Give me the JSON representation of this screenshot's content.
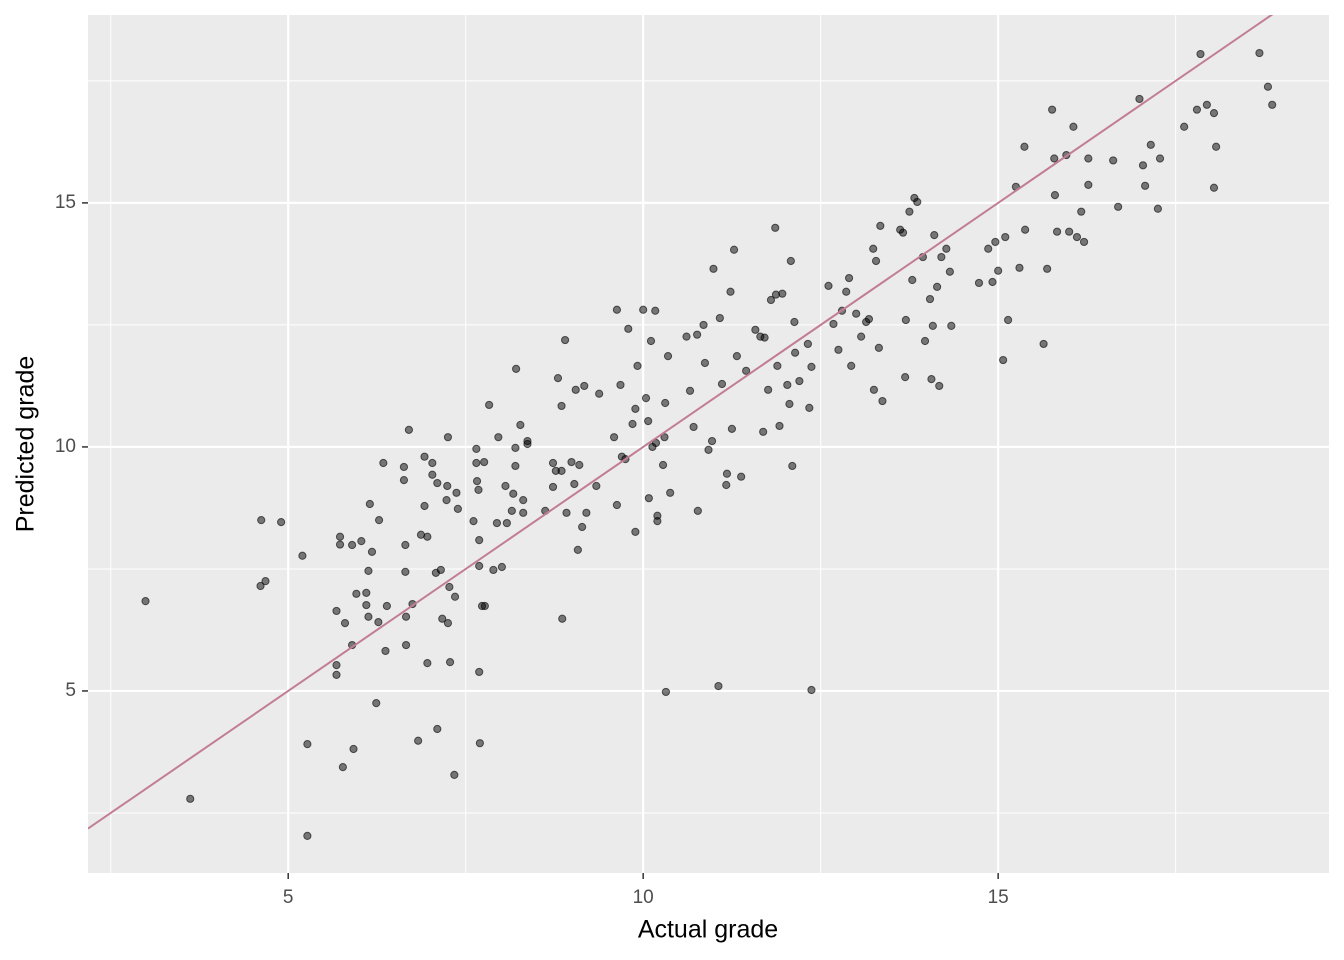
{
  "chart_data": {
    "type": "scatter",
    "x_label": "Actual grade",
    "y_label": "Predicted grade",
    "xlim": [
      2.18,
      19.66
    ],
    "ylim": [
      1.27,
      18.85
    ],
    "xticks": [
      5,
      10,
      15
    ],
    "yticks": [
      5,
      10,
      15
    ],
    "grid": true,
    "minor_grid": true,
    "color": "#000000",
    "reference_line": {
      "slope": 1,
      "intercept": 0,
      "color": "#c27c96"
    },
    "x": [
      2.99,
      3.62,
      4.62,
      4.9,
      4.61,
      4.68,
      5.2,
      5.27,
      5.27,
      5.73,
      5.73,
      5.68,
      5.68,
      5.68,
      5.8,
      5.77,
      5.92,
      5.9,
      5.96,
      5.9,
      6.03,
      6.13,
      6.1,
      6.1,
      6.13,
      6.18,
      6.15,
      6.24,
      6.27,
      6.28,
      6.34,
      6.37,
      6.39,
      6.63,
      6.63,
      6.65,
      6.65,
      6.66,
      6.66,
      6.7,
      6.75,
      6.83,
      6.87,
      6.92,
      6.92,
      6.96,
      6.96,
      7.03,
      7.03,
      7.1,
      7.08,
      7.1,
      7.15,
      7.17,
      7.23,
      7.24,
      7.25,
      7.25,
      7.27,
      7.28,
      7.35,
      7.34,
      7.37,
      7.39,
      7.61,
      7.65,
      7.65,
      7.66,
      7.69,
      7.69,
      7.69,
      7.7,
      7.68,
      7.73,
      7.76,
      7.77,
      7.83,
      7.89,
      7.94,
      7.96,
      8.01,
      8.06,
      8.08,
      8.15,
      8.17,
      8.2,
      8.2,
      8.21,
      8.27,
      8.31,
      8.31,
      8.37,
      8.37,
      8.62,
      8.73,
      8.73,
      8.77,
      8.8,
      8.85,
      8.85,
      8.86,
      8.9,
      8.92,
      8.99,
      9.03,
      9.05,
      9.08,
      9.1,
      9.14,
      9.17,
      9.2,
      9.34,
      9.38,
      9.59,
      9.63,
      9.63,
      9.68,
      9.7,
      9.75,
      9.79,
      9.85,
      9.89,
      9.92,
      9.89,
      10.0,
      10.04,
      10.07,
      10.08,
      10.11,
      10.13,
      10.17,
      10.18,
      10.2,
      10.2,
      10.28,
      10.3,
      10.31,
      10.32,
      10.35,
      10.38,
      10.61,
      10.66,
      10.71,
      10.76,
      10.77,
      10.85,
      10.87,
      10.92,
      10.97,
      10.99,
      11.06,
      11.08,
      11.11,
      11.17,
      11.18,
      11.23,
      11.25,
      11.28,
      11.32,
      11.38,
      11.45,
      11.58,
      11.65,
      11.69,
      11.71,
      11.76,
      11.8,
      11.86,
      11.87,
      11.89,
      11.92,
      11.96,
      12.03,
      12.06,
      12.08,
      12.1,
      12.13,
      12.14,
      12.2,
      12.32,
      12.34,
      12.37,
      12.37,
      12.61,
      12.68,
      12.75,
      12.8,
      12.86,
      12.9,
      12.93,
      13.0,
      13.07,
      13.14,
      13.18,
      13.24,
      13.28,
      13.25,
      13.32,
      13.34,
      13.37,
      13.62,
      13.66,
      13.69,
      13.7,
      13.75,
      13.79,
      13.82,
      13.86,
      13.94,
      13.97,
      14.04,
      14.06,
      14.08,
      14.1,
      14.14,
      14.17,
      14.2,
      14.27,
      14.32,
      14.34,
      14.73,
      14.86,
      14.92,
      14.96,
      15.0,
      15.07,
      15.1,
      15.14,
      15.25,
      15.3,
      15.37,
      15.38,
      15.64,
      15.69,
      15.76,
      15.79,
      15.8,
      15.83,
      15.96,
      16.0,
      16.06,
      16.11,
      16.17,
      16.21,
      16.27,
      16.27,
      16.62,
      16.69,
      16.99,
      17.04,
      17.07,
      17.15,
      17.25,
      17.28,
      17.62,
      17.8,
      17.85,
      17.94,
      18.04,
      18.04,
      18.07,
      18.68,
      18.8,
      18.86
    ],
    "values": [
      6.84,
      2.79,
      8.5,
      8.46,
      7.15,
      7.25,
      7.77,
      3.91,
      2.03,
      8.16,
      8.0,
      6.64,
      5.53,
      5.33,
      6.39,
      3.44,
      3.81,
      5.94,
      6.99,
      7.99,
      8.07,
      7.46,
      7.01,
      6.76,
      6.52,
      7.85,
      8.83,
      4.75,
      6.41,
      8.5,
      9.67,
      5.82,
      6.74,
      9.59,
      9.32,
      7.99,
      7.44,
      6.52,
      5.94,
      10.35,
      6.78,
      3.98,
      8.2,
      9.8,
      8.79,
      5.57,
      8.16,
      9.67,
      9.43,
      4.22,
      7.42,
      9.26,
      7.48,
      6.48,
      8.91,
      9.2,
      10.2,
      6.39,
      7.13,
      5.59,
      6.93,
      3.28,
      9.06,
      8.73,
      8.48,
      9.96,
      9.67,
      9.3,
      8.09,
      7.56,
      5.39,
      3.93,
      9.12,
      6.74,
      9.69,
      6.74,
      10.86,
      7.48,
      8.44,
      10.2,
      7.54,
      9.2,
      8.44,
      8.69,
      9.04,
      9.61,
      9.98,
      11.6,
      10.45,
      8.91,
      8.65,
      10.12,
      10.06,
      8.69,
      9.18,
      9.67,
      9.51,
      11.41,
      10.84,
      9.51,
      6.48,
      12.19,
      8.65,
      9.69,
      9.24,
      11.17,
      7.89,
      9.63,
      8.36,
      11.25,
      8.65,
      9.2,
      11.09,
      10.2,
      12.81,
      8.81,
      11.27,
      9.8,
      9.75,
      12.42,
      10.47,
      8.26,
      11.66,
      10.78,
      12.81,
      11.0,
      10.53,
      8.95,
      12.17,
      10.0,
      12.79,
      10.08,
      8.59,
      8.48,
      9.63,
      10.2,
      10.9,
      4.98,
      11.86,
      9.06,
      12.26,
      11.15,
      10.41,
      12.3,
      8.69,
      12.5,
      11.72,
      9.94,
      10.12,
      13.65,
      5.1,
      12.64,
      11.29,
      9.22,
      9.45,
      13.18,
      10.37,
      14.04,
      11.86,
      9.39,
      11.56,
      12.4,
      12.26,
      10.31,
      12.24,
      11.17,
      13.01,
      14.49,
      13.12,
      11.66,
      10.43,
      13.14,
      11.27,
      10.88,
      13.81,
      9.61,
      12.56,
      11.93,
      11.35,
      12.11,
      10.8,
      11.64,
      5.02,
      13.3,
      12.52,
      11.99,
      12.79,
      13.18,
      13.46,
      11.66,
      12.73,
      12.26,
      12.56,
      12.62,
      14.06,
      13.81,
      11.17,
      12.03,
      14.53,
      10.94,
      14.45,
      14.39,
      11.43,
      12.6,
      14.82,
      13.42,
      15.1,
      15.02,
      13.89,
      12.17,
      13.03,
      11.39,
      12.48,
      14.34,
      13.28,
      11.25,
      13.89,
      14.06,
      13.59,
      12.48,
      13.36,
      14.06,
      13.38,
      14.2,
      13.61,
      11.78,
      14.3,
      12.6,
      15.33,
      13.67,
      16.15,
      14.45,
      12.11,
      13.65,
      16.91,
      15.91,
      15.16,
      14.41,
      15.98,
      14.41,
      16.56,
      14.3,
      14.82,
      14.2,
      15.91,
      15.37,
      15.87,
      14.92,
      17.13,
      15.77,
      15.35,
      16.19,
      14.88,
      15.91,
      16.56,
      16.91,
      18.05,
      17.01,
      16.84,
      15.31,
      16.15,
      18.07,
      17.38,
      17.01
    ]
  }
}
